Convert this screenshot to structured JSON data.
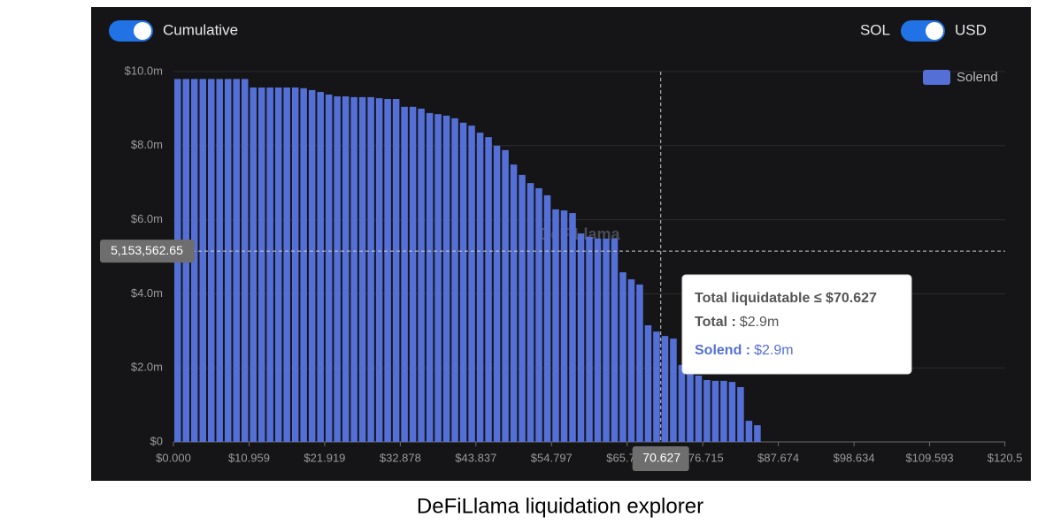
{
  "toggles": {
    "mode": "Cumulative",
    "unit_a": "SOL",
    "unit_b": "USD"
  },
  "chart_data": {
    "type": "histogram",
    "series": [
      {
        "name": "Solend",
        "color": "#5470d6",
        "values": [
          9800000,
          9800000,
          9800000,
          9800000,
          9800000,
          9800000,
          9800000,
          9800000,
          9800000,
          9570000,
          9570000,
          9570000,
          9570000,
          9570000,
          9570000,
          9550000,
          9500000,
          9450000,
          9380000,
          9330000,
          9330000,
          9310000,
          9310000,
          9310000,
          9280000,
          9260000,
          9260000,
          9050000,
          9050000,
          9000000,
          8880000,
          8850000,
          8810000,
          8740000,
          8620000,
          8540000,
          8350000,
          8230000,
          8000000,
          7880000,
          7490000,
          7210000,
          6990000,
          6850000,
          6660000,
          6280000,
          6250000,
          6180000,
          5630000,
          5540000,
          5490000,
          5490000,
          5490000,
          4580000,
          4390000,
          4250000,
          3150000,
          2980000,
          2860000,
          2790000,
          2080000,
          1860000,
          1790000,
          1670000,
          1650000,
          1650000,
          1620000,
          1480000,
          570000,
          450000
        ]
      }
    ],
    "bins": [
      0,
      1.218,
      2.435,
      3.653,
      4.871,
      6.089,
      7.306,
      8.524,
      9.742,
      10.959,
      12.177,
      13.394,
      14.612,
      15.83,
      17.048,
      18.265,
      19.483,
      20.701,
      21.919,
      23.136,
      24.354,
      25.572,
      26.789,
      28.007,
      29.225,
      30.442,
      31.66,
      32.878,
      34.096,
      35.313,
      36.531,
      37.749,
      38.966,
      40.184,
      41.402,
      42.619,
      43.837,
      45.055,
      46.273,
      47.49,
      48.708,
      49.926,
      51.143,
      52.361,
      53.579,
      54.797,
      56.014,
      57.232,
      58.45,
      59.667,
      60.885,
      62.103,
      63.32,
      64.538,
      65.756,
      66.974,
      68.191,
      69.409,
      70.627,
      71.844,
      73.062,
      74.28,
      75.497,
      76.715,
      77.933,
      79.151,
      80.368,
      81.586,
      82.804,
      84.021,
      85.239
    ],
    "xlim": [
      0,
      120.55
    ],
    "ylim": [
      0,
      10000000
    ],
    "xticks": [
      {
        "value": 0,
        "label": "$0.000"
      },
      {
        "value": 10.959,
        "label": "$10.959"
      },
      {
        "value": 21.919,
        "label": "$21.919"
      },
      {
        "value": 32.878,
        "label": "$32.878"
      },
      {
        "value": 43.837,
        "label": "$43.837"
      },
      {
        "value": 54.797,
        "label": "$54.797"
      },
      {
        "value": 65.756,
        "label": "$65.756"
      },
      {
        "value": 76.715,
        "label": "$76.715"
      },
      {
        "value": 87.674,
        "label": "$87.674"
      },
      {
        "value": 98.634,
        "label": "$98.634"
      },
      {
        "value": 109.593,
        "label": "$109.593"
      },
      {
        "value": 120.5,
        "label": "$120.5"
      }
    ],
    "yticks": [
      {
        "value": 0,
        "label": "$0"
      },
      {
        "value": 2000000,
        "label": "$2.0m"
      },
      {
        "value": 4000000,
        "label": "$4.0m"
      },
      {
        "value": 6000000,
        "label": "$6.0m"
      },
      {
        "value": 8000000,
        "label": "$8.0m"
      },
      {
        "value": 10000000,
        "label": "$10.0m"
      }
    ],
    "grid": true,
    "legend": "top-right",
    "watermark": "DeFiLlama",
    "crosshair": {
      "x": 70.627,
      "x_label": "70.627",
      "y": 5153562.65,
      "y_label": "5,153,562.65"
    },
    "tooltip": {
      "title": "Total liquidatable ≤ $70.627",
      "rows": [
        {
          "label": "Total :",
          "value": "$2.9m"
        },
        {
          "label": "Solend :",
          "value": "$2.9m"
        }
      ]
    }
  },
  "caption": "DeFiLlama liquidation explorer"
}
